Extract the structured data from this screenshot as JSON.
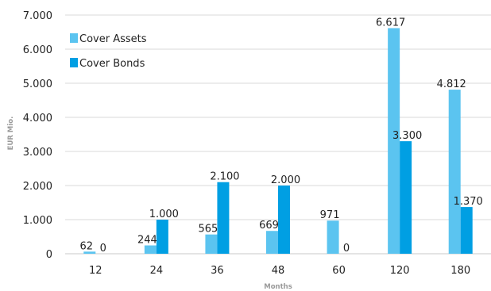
{
  "chart_data": {
    "type": "bar",
    "categories": [
      "12",
      "24",
      "36",
      "48",
      "60",
      "120",
      "180"
    ],
    "series": [
      {
        "name": "Cover Assets",
        "color": "#5bc4f0",
        "values": [
          62,
          244,
          565,
          669,
          971,
          6617,
          4812
        ],
        "labels": [
          "62",
          "244",
          "565",
          "669",
          "971",
          "6.617",
          "4.812"
        ]
      },
      {
        "name": "Cover Bonds",
        "color": "#009fe3",
        "values": [
          0,
          1000,
          2100,
          2000,
          0,
          3300,
          1370
        ],
        "labels": [
          "0",
          "1.000",
          "2.100",
          "2.000",
          "0",
          "3.300",
          "1.370"
        ]
      }
    ],
    "xlabel": "Months",
    "ylabel": "EUR Mio.",
    "ylim": [
      0,
      7000
    ],
    "yticks": [
      0,
      1000,
      2000,
      3000,
      4000,
      5000,
      6000,
      7000
    ],
    "ytick_labels": [
      "0",
      "1.000",
      "2.000",
      "3.000",
      "4.000",
      "5.000",
      "6.000",
      "7.000"
    ],
    "grid": true,
    "gridline_color": "#d9d9d9",
    "legend_placement": "top-left"
  }
}
